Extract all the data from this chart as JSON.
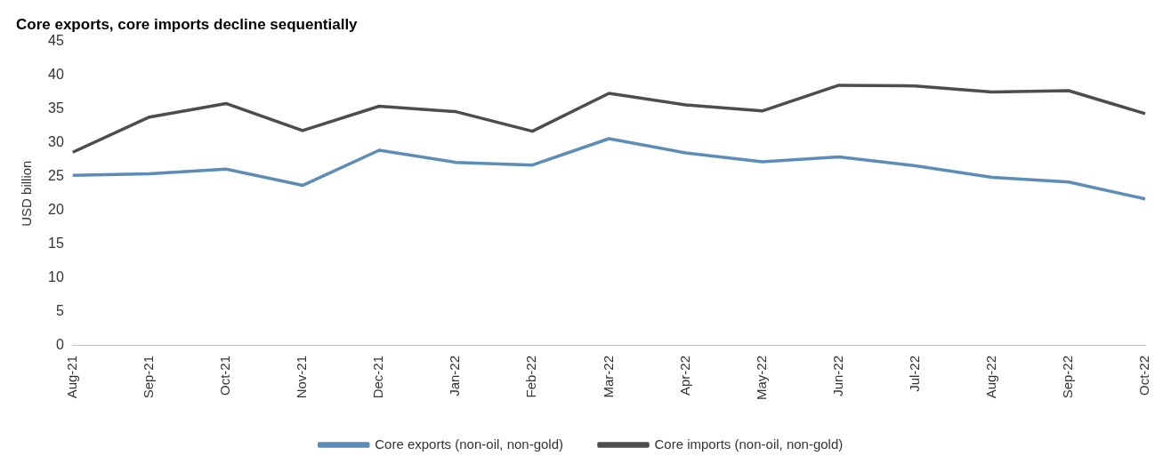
{
  "chart_data": {
    "type": "line",
    "title": "Core exports, core imports decline sequentially",
    "ylabel": "USD billion",
    "categories": [
      "Aug-21",
      "Sep-21",
      "Oct-21",
      "Nov-21",
      "Dec-21",
      "Jan-22",
      "Feb-22",
      "Mar-22",
      "Apr-22",
      "May-22",
      "Jun-22",
      "Jul-22",
      "Aug-22",
      "Sep-22",
      "Oct-22"
    ],
    "series": [
      {
        "name": "Core exports (non-oil, non-gold)",
        "color": "#5b8db8",
        "values": [
          25.2,
          25.4,
          26.1,
          23.7,
          28.9,
          27.1,
          26.7,
          30.6,
          28.5,
          27.2,
          27.9,
          26.6,
          24.9,
          24.2,
          21.7
        ]
      },
      {
        "name": "Core imports (non-oil, non-gold)",
        "color": "#4d4d4d",
        "values": [
          28.6,
          33.8,
          35.8,
          31.8,
          35.4,
          34.6,
          31.7,
          37.3,
          35.6,
          34.7,
          38.5,
          38.4,
          37.5,
          37.7,
          34.3
        ]
      }
    ],
    "ylim": [
      0,
      45
    ],
    "yticks": [
      0,
      5,
      10,
      15,
      20,
      25,
      30,
      35,
      40,
      45
    ],
    "grid": false,
    "legend": "bottom",
    "marker": "none",
    "line_style": "solid"
  }
}
